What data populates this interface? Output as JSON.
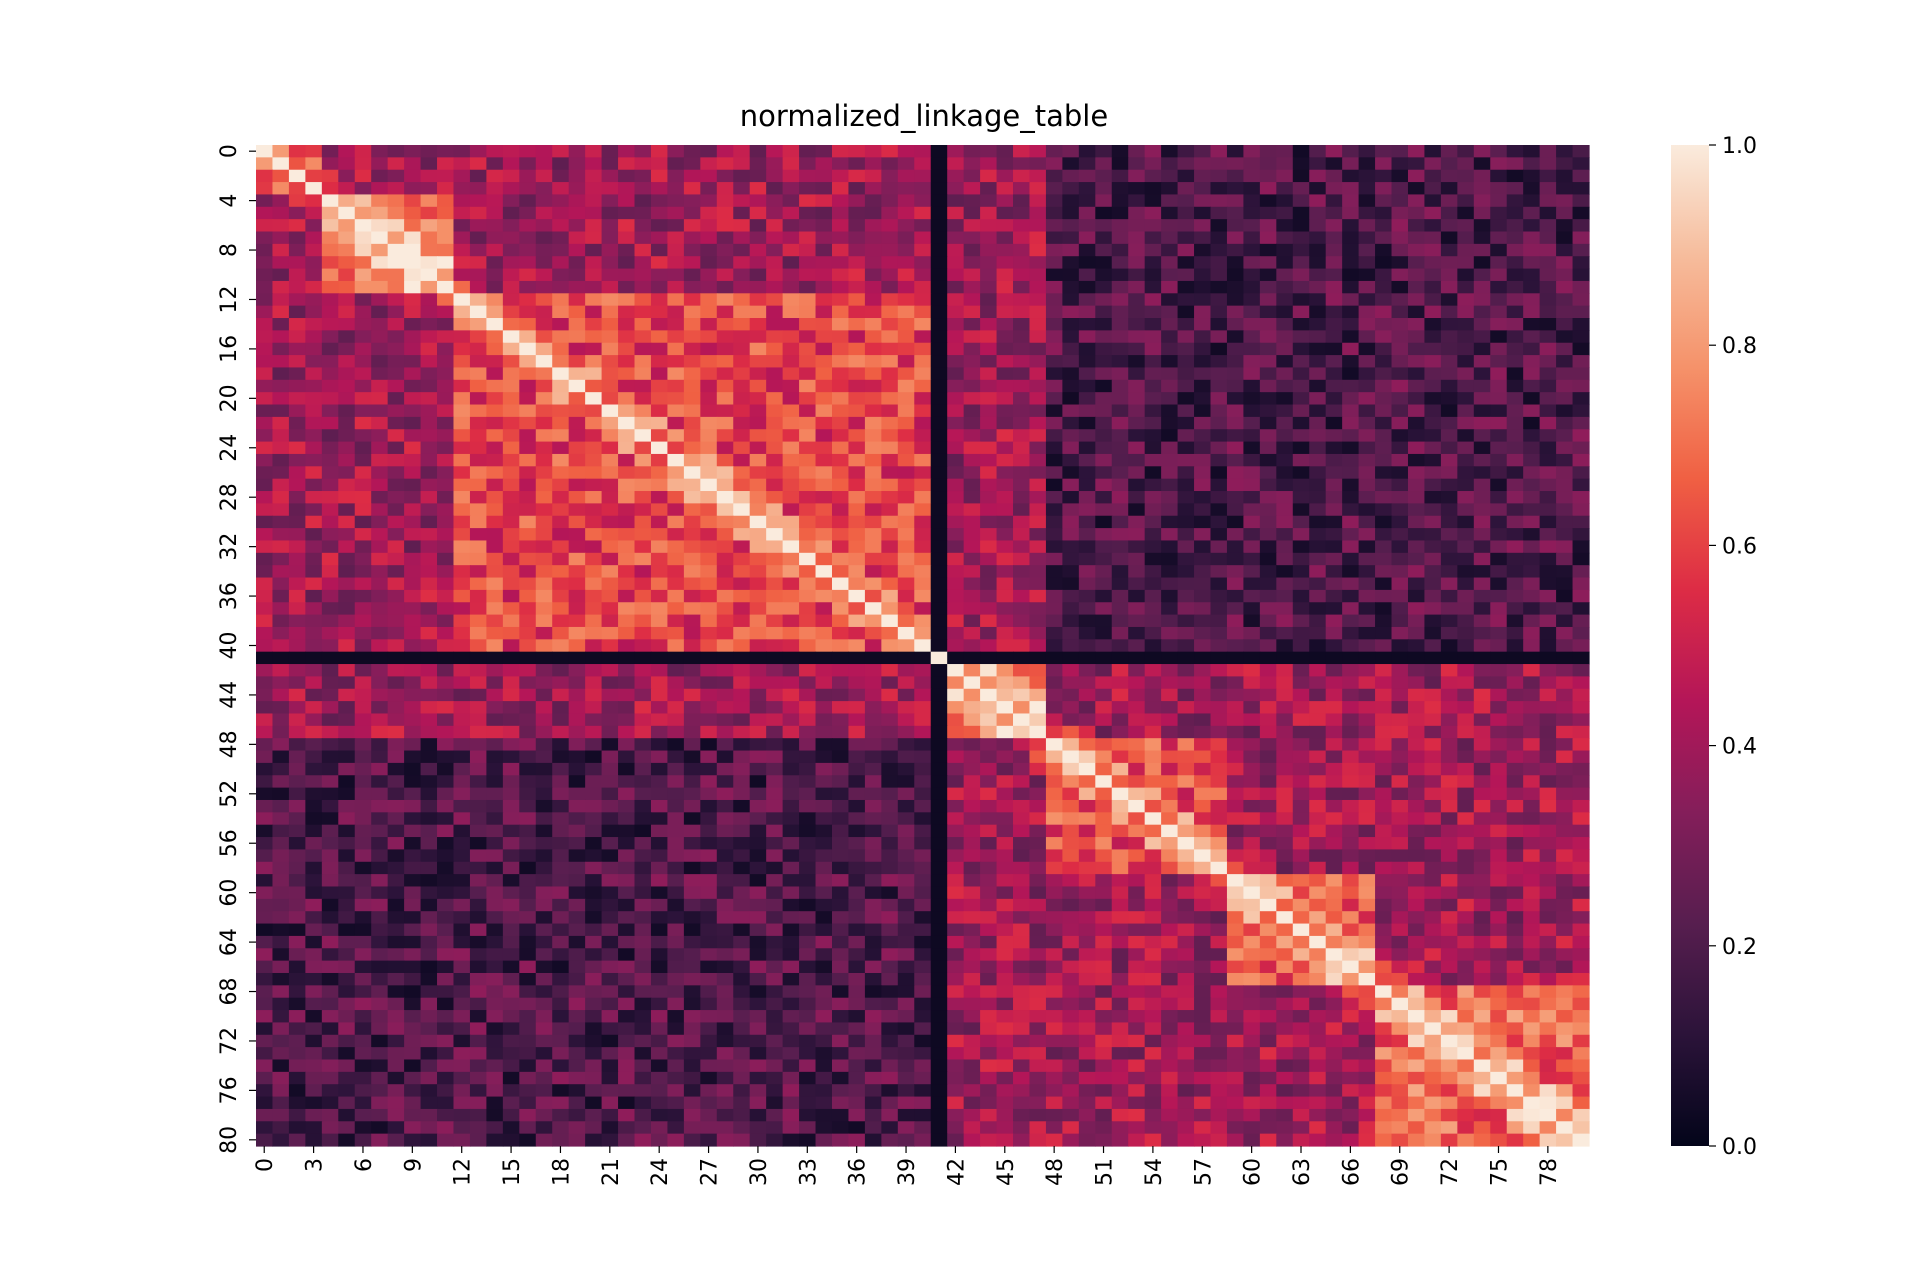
{
  "chart_data": {
    "type": "heatmap",
    "title": "normalized_linkage_table",
    "size": 81,
    "value_range": [
      0,
      1
    ],
    "x_tick_labels": [
      "0",
      "3",
      "6",
      "9",
      "12",
      "15",
      "18",
      "21",
      "24",
      "27",
      "30",
      "33",
      "36",
      "39",
      "42",
      "45",
      "48",
      "51",
      "54",
      "57",
      "60",
      "63",
      "66",
      "69",
      "72",
      "75",
      "78"
    ],
    "y_tick_labels": [
      "0",
      "4",
      "8",
      "12",
      "16",
      "20",
      "24",
      "28",
      "32",
      "36",
      "40",
      "44",
      "48",
      "52",
      "56",
      "60",
      "64",
      "68",
      "72",
      "76",
      "80"
    ],
    "colorbar_tick_labels": [
      "0.0",
      "0.2",
      "0.4",
      "0.6",
      "0.8",
      "1.0"
    ],
    "colormap": [
      "#03051a",
      "#2b1339",
      "#571e4f",
      "#841e5a",
      "#b41658",
      "#dd2c45",
      "#f06043",
      "#f5926a",
      "#f6bc9c",
      "#faebdd"
    ],
    "dark_index": 41,
    "dark_row_value": 0.03,
    "blocks": [
      {
        "range": [
          0,
          3
        ],
        "value": 0.55
      },
      {
        "range": [
          4,
          11
        ],
        "value": 0.72
      },
      {
        "range": [
          12,
          40
        ],
        "value": 0.6
      },
      {
        "range": [
          42,
          47
        ],
        "value": 0.75
      },
      {
        "range": [
          48,
          58
        ],
        "value": 0.62
      },
      {
        "range": [
          59,
          67
        ],
        "value": 0.65
      },
      {
        "range": [
          68,
          80
        ],
        "value": 0.68
      }
    ],
    "background_value": 0.4,
    "far_background_value": 0.2
  }
}
